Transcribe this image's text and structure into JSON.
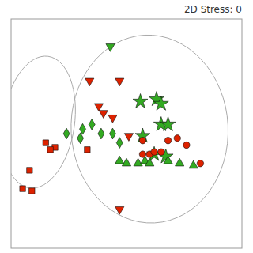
{
  "chart_data": {
    "type": "scatter",
    "title": "2D Stress: 0",
    "xlim": [
      0,
      1
    ],
    "ylim": [
      0,
      1
    ],
    "tick_labels": false,
    "grid": false,
    "series": [
      {
        "color": "#dd2200",
        "marker": "square",
        "x": [
          0.08,
          0.15,
          0.19,
          0.17,
          0.05,
          0.09,
          0.33
        ],
        "values": [
          0.34,
          0.46,
          0.44,
          0.43,
          0.26,
          0.25,
          0.43
        ]
      },
      {
        "color": "#33aa22",
        "marker": "diamond",
        "x": [
          0.24,
          0.3,
          0.39,
          0.44,
          0.47,
          0.35,
          0.31
        ],
        "values": [
          0.5,
          0.48,
          0.5,
          0.5,
          0.46,
          0.54,
          0.52
        ]
      },
      {
        "color": "#dd2200",
        "marker": "triangle-down",
        "x": [
          0.34,
          0.38,
          0.4,
          0.47,
          0.44,
          0.51,
          0.47
        ],
        "values": [
          0.73,
          0.62,
          0.59,
          0.73,
          0.57,
          0.49,
          0.17
        ]
      },
      {
        "color": "#33aa22",
        "marker": "triangle-down",
        "x": [
          0.43
        ],
        "values": [
          0.88
        ]
      },
      {
        "color": "#33aa22",
        "marker": "star",
        "x": [
          0.56,
          0.63,
          0.65,
          0.65,
          0.68,
          0.57,
          0.67,
          0.62
        ],
        "values": [
          0.64,
          0.65,
          0.63,
          0.54,
          0.54,
          0.49,
          0.4,
          0.41
        ]
      },
      {
        "color": "#33aa22",
        "marker": "triangle-up",
        "x": [
          0.47,
          0.5,
          0.55,
          0.58,
          0.6,
          0.68,
          0.73,
          0.79
        ],
        "values": [
          0.38,
          0.37,
          0.37,
          0.38,
          0.37,
          0.38,
          0.37,
          0.36
        ]
      },
      {
        "color": "#dd2200",
        "marker": "circle",
        "x": [
          0.57,
          0.6,
          0.62,
          0.65,
          0.57,
          0.68,
          0.76,
          0.82,
          0.72
        ],
        "values": [
          0.41,
          0.41,
          0.42,
          0.42,
          0.47,
          0.47,
          0.45,
          0.37,
          0.48
        ]
      }
    ],
    "ellipses": [
      {
        "cx": 0.12,
        "cy": 0.55,
        "w": 0.31,
        "h": 0.58,
        "angle": -8
      },
      {
        "cx": 0.6,
        "cy": 0.52,
        "w": 0.68,
        "h": 0.82,
        "angle": 3
      }
    ]
  }
}
